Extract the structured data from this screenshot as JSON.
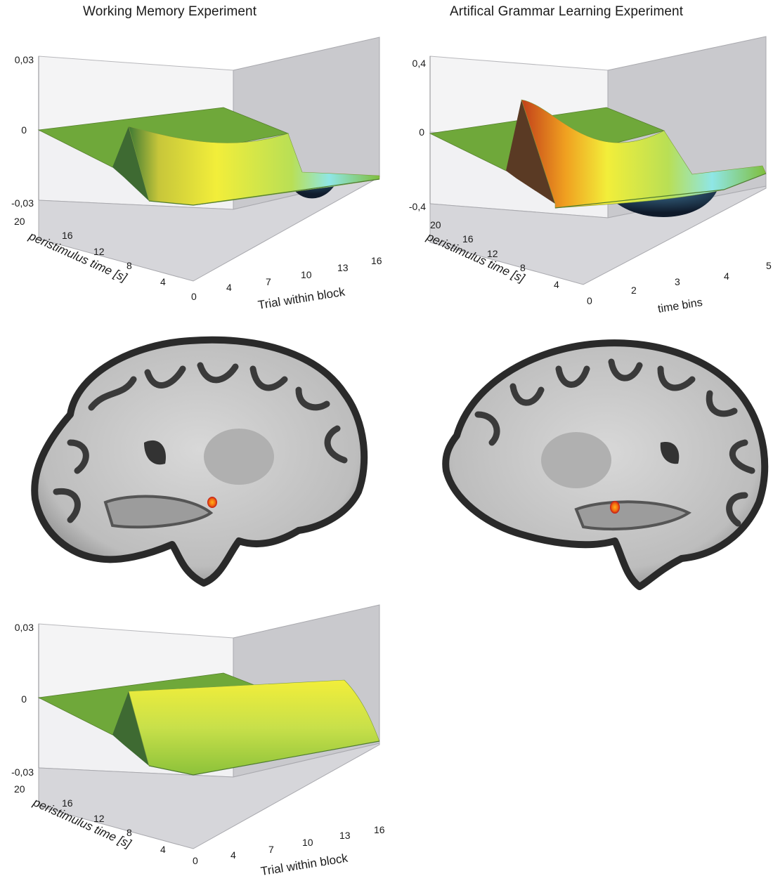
{
  "figure": {
    "left_title": "Working Memory Experiment",
    "right_title": "Artifical Grammar Learning Experiment"
  },
  "colors": {
    "surface_green": "#6fa83a",
    "surface_yellow": "#f2ee3a",
    "surface_red": "#d4441c",
    "surface_cyan": "#8fe6e6",
    "surface_navy": "#1c3048",
    "wall_gray": "#c9c9cd",
    "activation_orange": "#f26a10",
    "activation_red": "#c01818"
  },
  "chart_data": [
    {
      "type": "surface3d",
      "panel": "top-left",
      "z_ticks": [
        "0,03",
        "0",
        "-0,03"
      ],
      "depth_ticks": [
        "20",
        "16",
        "12",
        "8",
        "4"
      ],
      "depth_label": "peristimulus time [s]",
      "x_ticks": [
        "0",
        "4",
        "7",
        "10",
        "13",
        "16"
      ],
      "x_label": "Trial within block",
      "peak": 0.012,
      "trough": -0.015,
      "trough_position": 0.75
    },
    {
      "type": "surface3d",
      "panel": "top-right",
      "z_ticks": [
        "0,4",
        "0",
        "-0,4"
      ],
      "depth_ticks": [
        "20",
        "16",
        "12",
        "8",
        "4"
      ],
      "depth_label": "peristimulus time [s]",
      "x_ticks": [
        "0",
        "2",
        "3",
        "4",
        "5"
      ],
      "x_label": "time bins",
      "peak": 0.2,
      "trough": -0.26,
      "trough_position": 0.75
    },
    {
      "type": "surface3d",
      "panel": "bottom-left",
      "z_ticks": [
        "0,03",
        "0",
        "-0,03"
      ],
      "depth_ticks": [
        "20",
        "16",
        "12",
        "8",
        "4"
      ],
      "depth_label": "peristimulus time [s]",
      "x_ticks": [
        "0",
        "4",
        "7",
        "10",
        "13",
        "16"
      ],
      "x_label": "Trial within block",
      "peak": 0.012,
      "trough": 0,
      "trough_position": 0.75
    }
  ],
  "brain_images": [
    {
      "name": "brain-slice-left",
      "activation": "hippocampus"
    },
    {
      "name": "brain-slice-right",
      "activation": "hippocampus"
    }
  ]
}
